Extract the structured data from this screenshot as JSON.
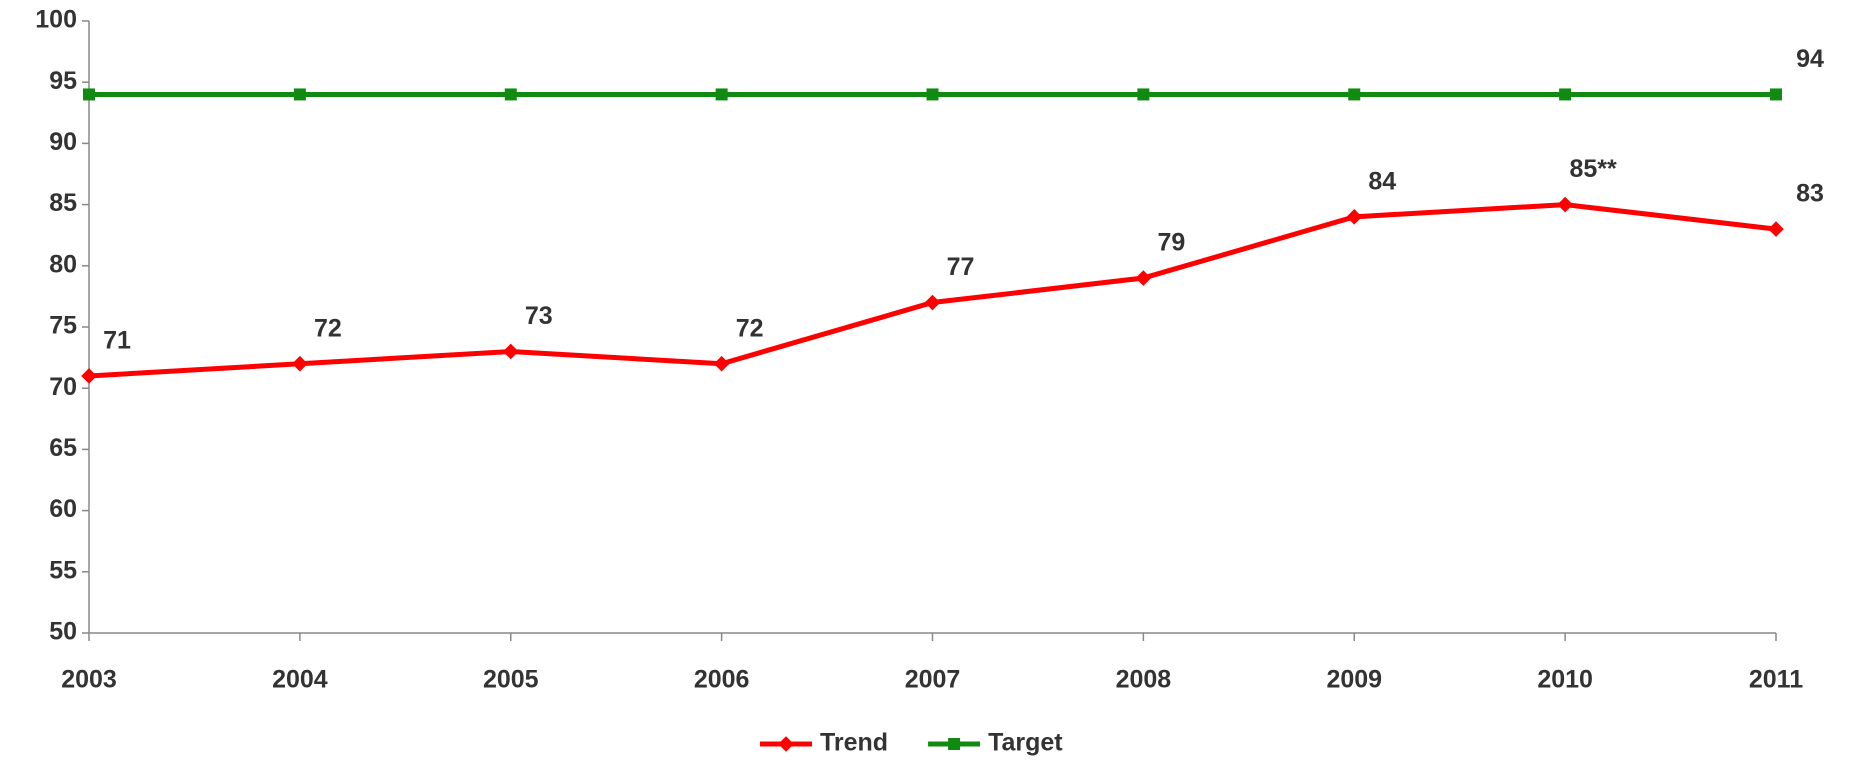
{
  "chart_data": {
    "type": "line",
    "categories": [
      "2003",
      "2004",
      "2005",
      "2006",
      "2007",
      "2008",
      "2009",
      "2010",
      "2011"
    ],
    "series": [
      {
        "name": "Trend",
        "color": "#ff0000",
        "marker": "diamond",
        "values": [
          71,
          72,
          73,
          72,
          77,
          79,
          84,
          85,
          83
        ],
        "value_labels": [
          "71",
          "72",
          "73",
          "72",
          "77",
          "79",
          "84",
          "85**",
          "83"
        ]
      },
      {
        "name": "Target",
        "color": "#108a10",
        "marker": "square",
        "values": [
          94,
          94,
          94,
          94,
          94,
          94,
          94,
          94,
          94
        ],
        "value_labels": [
          null,
          null,
          null,
          null,
          null,
          null,
          null,
          null,
          "94"
        ]
      }
    ],
    "ylim": [
      50,
      100
    ],
    "yticks": [
      50,
      55,
      60,
      65,
      70,
      75,
      80,
      85,
      90,
      95,
      100
    ],
    "grid": false,
    "legend": "bottom"
  }
}
